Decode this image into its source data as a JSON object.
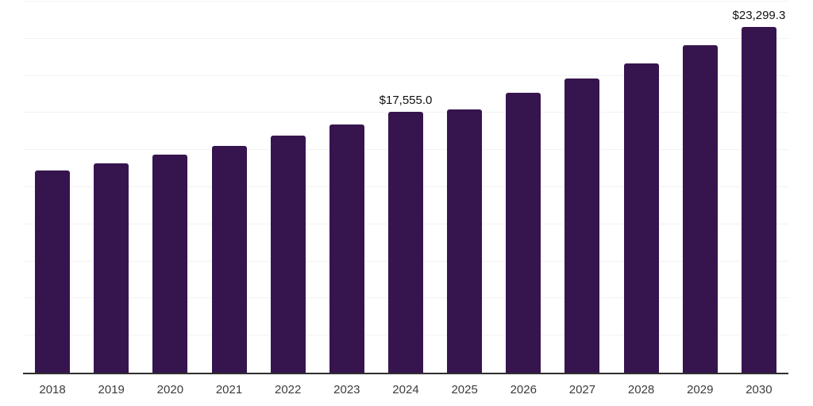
{
  "chart": {
    "background_color": "#ffffff",
    "bar_color": "#36154e",
    "grid_color": "#f2f2f2",
    "axis_line_color": "#2f2f2f",
    "tick_label_color": "#3c3c3c",
    "data_label_color": "#111111"
  },
  "chart_data": {
    "type": "bar",
    "title": "",
    "xlabel": "",
    "ylabel": "",
    "categories": [
      "2018",
      "2019",
      "2020",
      "2021",
      "2022",
      "2023",
      "2024",
      "2025",
      "2026",
      "2027",
      "2028",
      "2029",
      "2030"
    ],
    "values": [
      13610,
      14130,
      14670,
      15295,
      15950,
      16745,
      17555.0,
      17750,
      18865,
      19805,
      20815,
      22050,
      23299.3
    ],
    "data_labels": [
      "",
      "",
      "",
      "",
      "",
      "",
      "$17,555.0",
      "",
      "",
      "",
      "",
      "",
      "$23,299.3"
    ],
    "ylim": [
      0,
      25000
    ],
    "gridline_step": 2500,
    "grid": "horizontal",
    "legend": "none",
    "y_axis_tick_labels_visible": false
  }
}
